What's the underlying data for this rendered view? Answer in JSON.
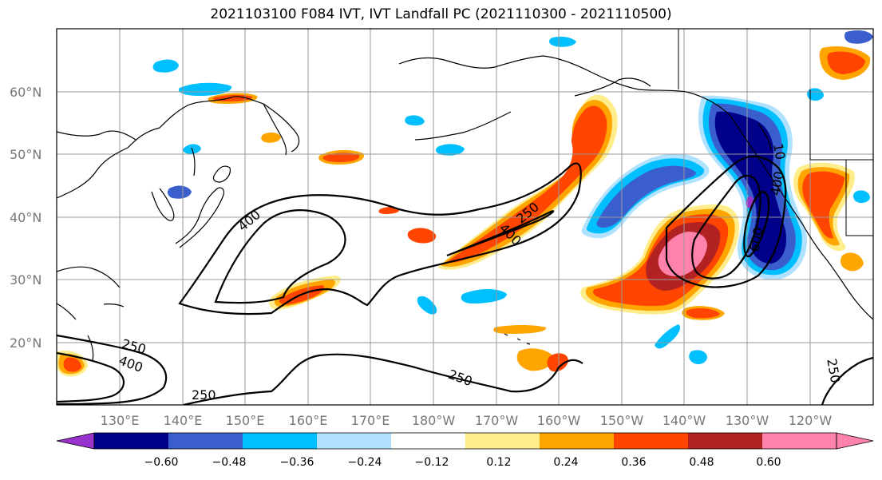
{
  "title": "2021103100 F084 IVT, IVT Landfall PC (2021110300 - 2021110500)",
  "lat_labels": [
    "60°N",
    "50°N",
    "40°N",
    "30°N",
    "20°N"
  ],
  "lon_labels": [
    "130°E",
    "140°E",
    "150°E",
    "160°E",
    "170°E",
    "180°W",
    "170°W",
    "160°W",
    "150°W",
    "140°W",
    "130°W",
    "120°W"
  ],
  "colorbar": {
    "ticks": [
      "−0.60",
      "−0.48",
      "−0.36",
      "−0.24",
      "−0.12",
      "0.12",
      "0.24",
      "0.36",
      "0.48",
      "0.60"
    ],
    "colors": [
      "#9932CC",
      "#00008B",
      "#3A5FCD",
      "#00BFFF",
      "#B0E2FF",
      "#FFFFFF",
      "#FFEC8B",
      "#FFA500",
      "#FF4500",
      "#B22222",
      "#FF82AB",
      "#FF82AB"
    ]
  },
  "contour_labels": [
    "400",
    "250",
    "400",
    "250",
    "400",
    "250",
    "400",
    "600",
    "400",
    "250",
    "250",
    "250",
    "10"
  ],
  "colors": {
    "frame": "#000000",
    "grid": "#999999",
    "coast": "#000000"
  }
}
